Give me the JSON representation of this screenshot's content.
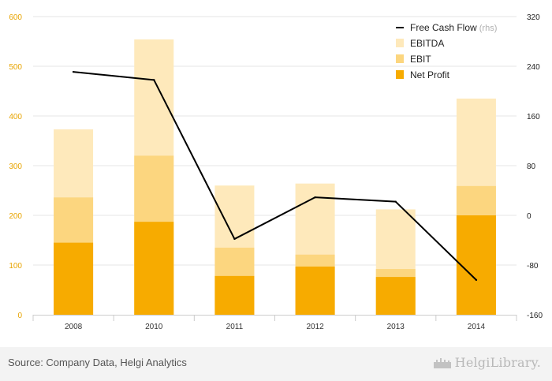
{
  "chart_data": {
    "type": "bar",
    "stacked": true,
    "categories": [
      "2008",
      "2010",
      "2011",
      "2012",
      "2013",
      "2014"
    ],
    "series": [
      {
        "name": "Net Profit",
        "kind": "bar",
        "color": "#f7ab00",
        "values": [
          145,
          187,
          78,
          97,
          76,
          200
        ]
      },
      {
        "name": "EBIT",
        "kind": "bar",
        "color": "#fcd67f",
        "values": [
          236,
          320,
          135,
          121,
          92,
          259
        ]
      },
      {
        "name": "EBITDA",
        "kind": "bar",
        "color": "#fee9bb",
        "values": [
          373,
          554,
          260,
          264,
          212,
          435
        ]
      },
      {
        "name": "Free Cash Flow",
        "name_suffix": "(rhs)",
        "kind": "line",
        "axis": "right",
        "color": "#000000",
        "values": [
          231,
          218,
          -38,
          29,
          22,
          -104
        ]
      }
    ],
    "left_axis": {
      "min": 0,
      "max": 600,
      "ticks": [
        "0",
        "100",
        "200",
        "300",
        "400",
        "500",
        "600"
      ],
      "color": "#e8a400"
    },
    "right_axis": {
      "min": -160,
      "max": 320,
      "ticks": [
        "-160",
        "-80",
        "0",
        "80",
        "160",
        "240",
        "320"
      ],
      "color": "#222222"
    },
    "legend": {
      "position": "top-right",
      "order": [
        "Free Cash Flow",
        "EBITDA",
        "EBIT",
        "Net Profit"
      ]
    },
    "grid": true
  },
  "footer": {
    "source": "Source: Company Data, Helgi Analytics",
    "brand": "HelgiLibrary."
  }
}
